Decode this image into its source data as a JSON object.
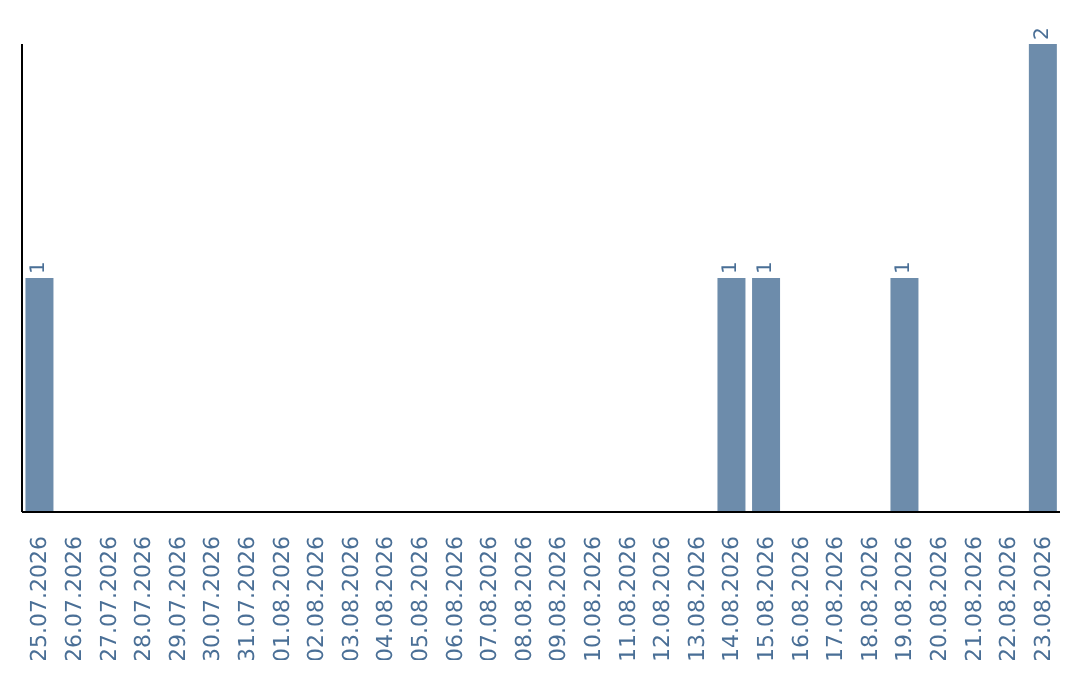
{
  "chart_data": {
    "type": "bar",
    "categories": [
      "25.07.2026",
      "26.07.2026",
      "27.07.2026",
      "28.07.2026",
      "29.07.2026",
      "30.07.2026",
      "31.07.2026",
      "01.08.2026",
      "02.08.2026",
      "03.08.2026",
      "04.08.2026",
      "05.08.2026",
      "06.08.2026",
      "07.08.2026",
      "08.08.2026",
      "09.08.2026",
      "10.08.2026",
      "11.08.2026",
      "12.08.2026",
      "13.08.2026",
      "14.08.2026",
      "15.08.2026",
      "16.08.2026",
      "17.08.2026",
      "18.08.2026",
      "19.08.2026",
      "20.08.2026",
      "21.08.2026",
      "22.08.2026",
      "23.08.2026"
    ],
    "values": [
      1,
      0,
      0,
      0,
      0,
      0,
      0,
      0,
      0,
      0,
      0,
      0,
      0,
      0,
      0,
      0,
      0,
      0,
      0,
      0,
      1,
      1,
      0,
      0,
      0,
      1,
      0,
      0,
      0,
      2
    ],
    "value_labels": [
      "1",
      null,
      null,
      null,
      null,
      null,
      null,
      null,
      null,
      null,
      null,
      null,
      null,
      null,
      null,
      null,
      null,
      null,
      null,
      null,
      "1",
      "1",
      null,
      null,
      null,
      "1",
      null,
      null,
      null,
      "2"
    ],
    "color": "#6d8cab"
  }
}
